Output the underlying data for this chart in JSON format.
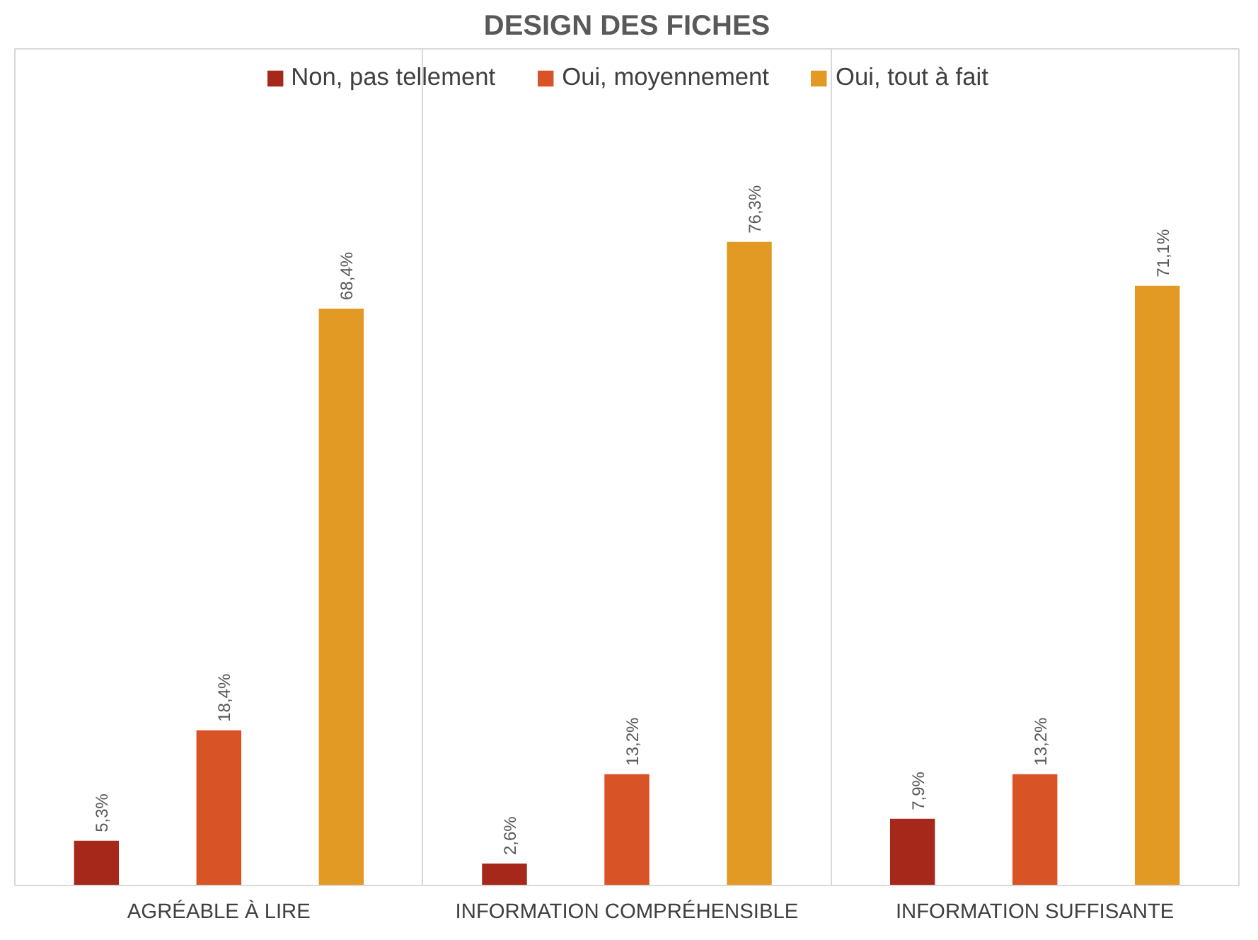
{
  "chart_data": {
    "type": "bar",
    "title": "DESIGN DES FICHES",
    "categories": [
      "AGRÉABLE À LIRE",
      "INFORMATION COMPRÉHENSIBLE",
      "INFORMATION SUFFISANTE"
    ],
    "series": [
      {
        "name": "Non, pas tellement",
        "color": "#a5281b",
        "values": [
          5.3,
          2.6,
          7.9
        ],
        "value_labels": [
          "5,3%",
          "2,6%",
          "7,9%"
        ]
      },
      {
        "name": "Oui, moyennement",
        "color": "#d85326",
        "values": [
          18.4,
          13.2,
          13.2
        ],
        "value_labels": [
          "18,4%",
          "13,2%",
          "13,2%"
        ]
      },
      {
        "name": "Oui, tout à fait",
        "color": "#e39a24",
        "values": [
          68.4,
          76.3,
          71.1
        ],
        "value_labels": [
          "68,4%",
          "76,3%",
          "71,1%"
        ]
      }
    ],
    "legend": "top",
    "grid": "x"
  }
}
